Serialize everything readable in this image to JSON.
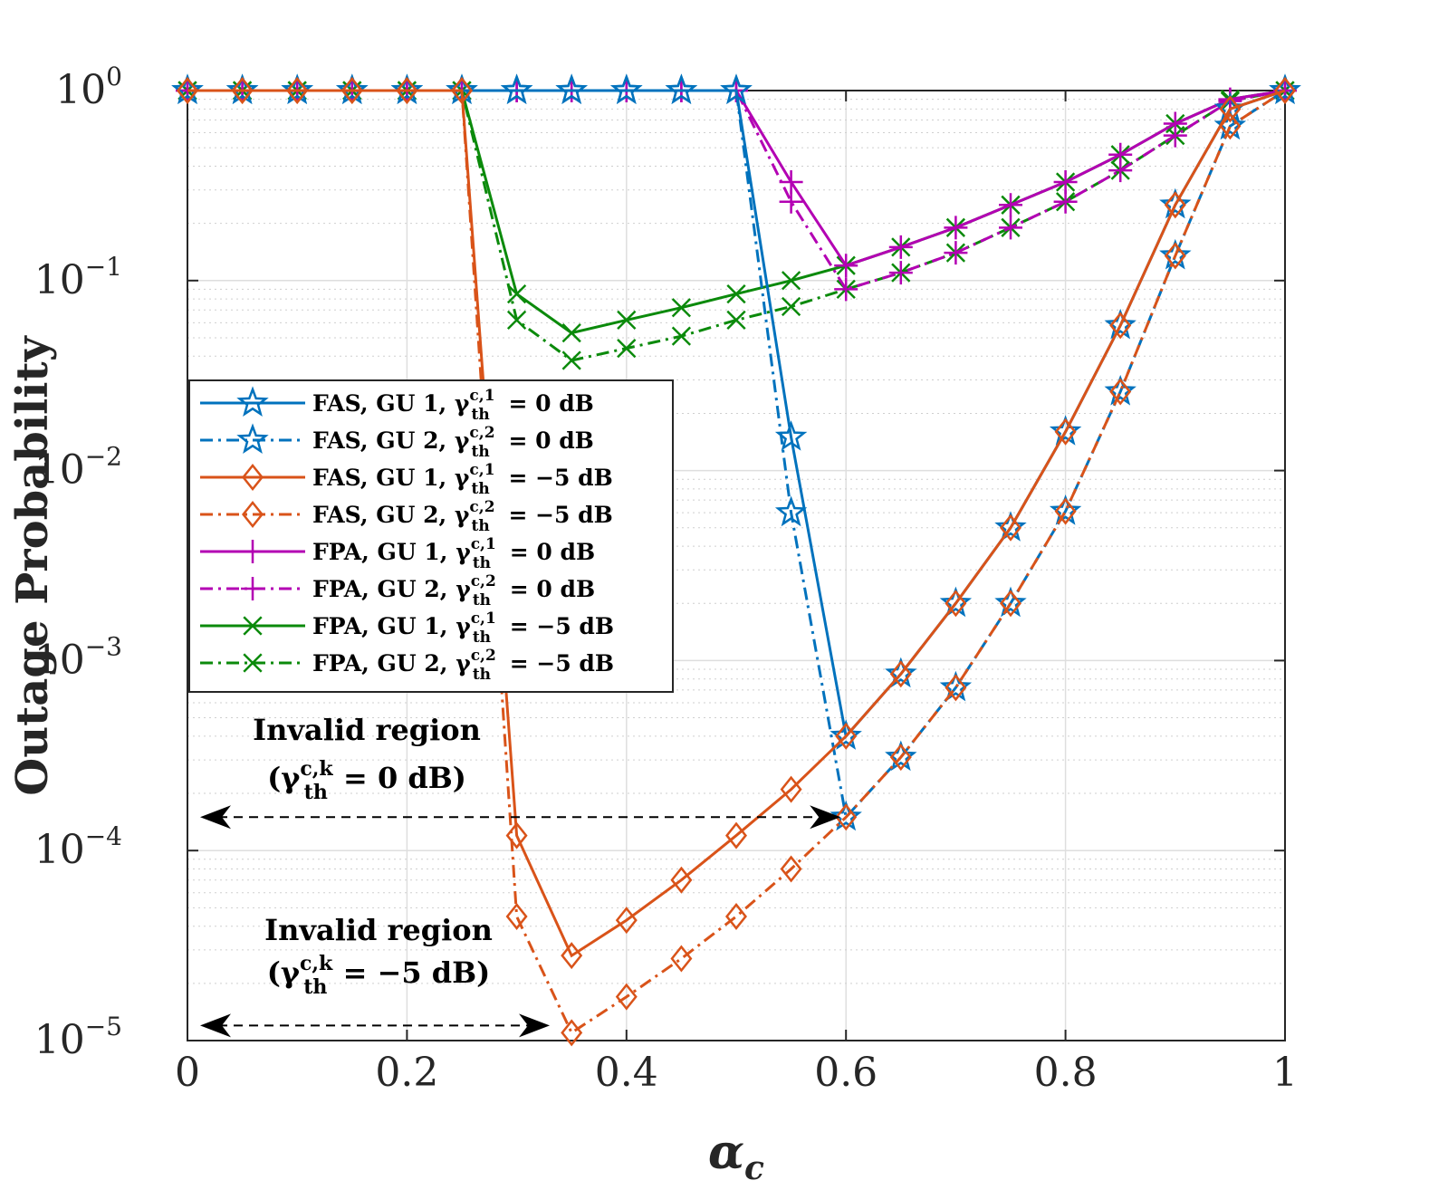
{
  "chart_data": {
    "type": "line",
    "title": "",
    "xlabel": "α_c",
    "ylabel": "Outage Probability",
    "x_ticks": [
      "0",
      "0.2",
      "0.4",
      "0.6",
      "0.8",
      "1"
    ],
    "y_scale": "log",
    "xlim": [
      0,
      1
    ],
    "ylim": [
      1e-05,
      1
    ],
    "grid": true,
    "legend_position": "middle-left",
    "x": [
      0,
      0.05,
      0.1,
      0.15,
      0.2,
      0.25,
      0.3,
      0.35,
      0.4,
      0.45,
      0.5,
      0.55,
      0.6,
      0.65,
      0.7,
      0.75,
      0.8,
      0.85,
      0.9,
      0.95,
      1.0
    ],
    "series": [
      {
        "name": "FAS, GU 1, γ_th^{c,1} = 0 dB",
        "label_main": "FAS, GU 1, γ",
        "label_sup": "c,1",
        "label_sub": "th",
        "label_tail": "= 0 dB",
        "color": "#0072BD",
        "dash": "solid",
        "marker": "star",
        "values": [
          1,
          1,
          1,
          1,
          1,
          1,
          1,
          1,
          1,
          1,
          1,
          0.015,
          0.0004,
          0.00085,
          0.002,
          0.005,
          0.016,
          0.058,
          0.25,
          0.8,
          1
        ]
      },
      {
        "name": "FAS, GU 2, γ_th^{c,2} = 0 dB",
        "label_main": "FAS, GU 2, γ",
        "label_sup": "c,2",
        "label_sub": "th",
        "label_tail": "= 0 dB",
        "color": "#0072BD",
        "dash": "dashdot",
        "marker": "star",
        "values": [
          1,
          1,
          1,
          1,
          1,
          1,
          1,
          1,
          1,
          1,
          1,
          0.006,
          0.00015,
          0.00031,
          0.00072,
          0.002,
          0.0061,
          0.026,
          0.135,
          0.65,
          1
        ]
      },
      {
        "name": "FAS, GU 1, γ_th^{c,1} = −5 dB",
        "label_main": "FAS, GU 1, γ",
        "label_sup": "c,1",
        "label_sub": "th",
        "label_tail": "= −5 dB",
        "color": "#D95319",
        "dash": "solid",
        "marker": "diamond",
        "values": [
          1,
          1,
          1,
          1,
          1,
          1,
          0.00012,
          2.8e-05,
          4.3e-05,
          7e-05,
          0.00012,
          0.00021,
          0.0004,
          0.00085,
          0.002,
          0.005,
          0.016,
          0.058,
          0.25,
          0.8,
          1
        ]
      },
      {
        "name": "FAS, GU 2, γ_th^{c,2} = −5 dB",
        "label_main": "FAS, GU 2, γ",
        "label_sup": "c,2",
        "label_sub": "th",
        "label_tail": "= −5 dB",
        "color": "#D95319",
        "dash": "dashdot",
        "marker": "diamond",
        "values": [
          1,
          1,
          1,
          1,
          1,
          1,
          4.5e-05,
          1.1e-05,
          1.7e-05,
          2.7e-05,
          4.5e-05,
          8e-05,
          0.00015,
          0.00031,
          0.00072,
          0.002,
          0.0061,
          0.026,
          0.135,
          0.65,
          1
        ]
      },
      {
        "name": "FPA, GU 1, γ_th^{c,1} = 0 dB",
        "label_main": "FPA, GU 1, γ",
        "label_sup": "c,1",
        "label_sub": "th",
        "label_tail": "= 0 dB",
        "color": "#B300B3",
        "dash": "solid",
        "marker": "plus",
        "values": [
          1,
          1,
          1,
          1,
          1,
          1,
          1,
          1,
          1,
          1,
          1,
          0.33,
          0.12,
          0.15,
          0.19,
          0.25,
          0.33,
          0.46,
          0.67,
          0.9,
          1
        ]
      },
      {
        "name": "FPA, GU 2, γ_th^{c,2} = 0 dB",
        "label_main": "FPA, GU 2, γ",
        "label_sup": "c,2",
        "label_sub": "th",
        "label_tail": "= 0 dB",
        "color": "#B300B3",
        "dash": "dashdot",
        "marker": "plus",
        "values": [
          1,
          1,
          1,
          1,
          1,
          1,
          1,
          1,
          1,
          1,
          1,
          0.26,
          0.09,
          0.11,
          0.14,
          0.19,
          0.26,
          0.38,
          0.58,
          0.88,
          1
        ]
      },
      {
        "name": "FPA, GU 1, γ_th^{c,1} = −5 dB",
        "label_main": "FPA, GU 1, γ",
        "label_sup": "c,1",
        "label_sub": "th",
        "label_tail": "= −5 dB",
        "color": "#0B8A0B",
        "dash": "solid",
        "marker": "cross",
        "values": [
          1,
          1,
          1,
          1,
          1,
          1,
          0.085,
          0.053,
          0.062,
          0.072,
          0.085,
          0.1,
          0.12,
          0.15,
          0.19,
          0.25,
          0.33,
          0.46,
          0.67,
          0.9,
          1
        ]
      },
      {
        "name": "FPA, GU 2, γ_th^{c,2} = −5 dB",
        "label_main": "FPA, GU 2, γ",
        "label_sup": "c,2",
        "label_sub": "th",
        "label_tail": "= −5 dB",
        "color": "#0B8A0B",
        "dash": "dashdot",
        "marker": "cross",
        "values": [
          1,
          1,
          1,
          1,
          1,
          1,
          0.062,
          0.038,
          0.044,
          0.051,
          0.062,
          0.073,
          0.09,
          0.11,
          0.14,
          0.19,
          0.26,
          0.38,
          0.58,
          0.88,
          1
        ]
      }
    ],
    "annotations": [
      {
        "line1": "Invalid region",
        "paren_open": "(γ",
        "sup": "c,k",
        "sub": "th",
        "tail": "= 0 dB)",
        "arrow_from_x": 0,
        "arrow_to_x": 0.6,
        "arrow_y": 0.00015
      },
      {
        "line1": "Invalid region",
        "paren_open": "(γ",
        "sup": "c,k",
        "sub": "th",
        "tail": "= −5 dB)",
        "arrow_from_x": 0,
        "arrow_to_x": 0.335,
        "arrow_y": 1.2e-05
      }
    ]
  }
}
